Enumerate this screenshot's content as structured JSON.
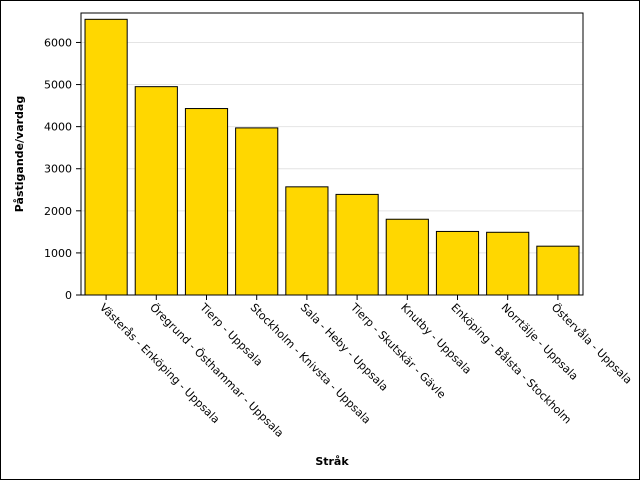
{
  "chart_data": {
    "type": "bar",
    "xlabel": "Stråk",
    "ylabel": "Påstigande/vardag",
    "ylim": [
      0,
      6700
    ],
    "yticks": [
      0,
      1000,
      2000,
      3000,
      4000,
      5000,
      6000
    ],
    "grid": "horizontal",
    "categories": [
      "Västerås - Enköping - Uppsala",
      "Öregrund - Östhammar - Uppsala",
      "Tierp - Uppsala",
      "Stockholm - Knivsta - Uppsala",
      "Sala - Heby - Uppsala",
      "Tierp - Skutskär - Gävle",
      "Knutby - Uppsala",
      "Enköping - Bålsta - Stockholm",
      "Norrtälje - Uppsala",
      "Östervåla - Uppsala"
    ],
    "values": [
      6550,
      4950,
      4430,
      3970,
      2570,
      2390,
      1800,
      1510,
      1490,
      1160
    ],
    "bar_color": "#FFD700",
    "bar_stroke": "#000000"
  }
}
